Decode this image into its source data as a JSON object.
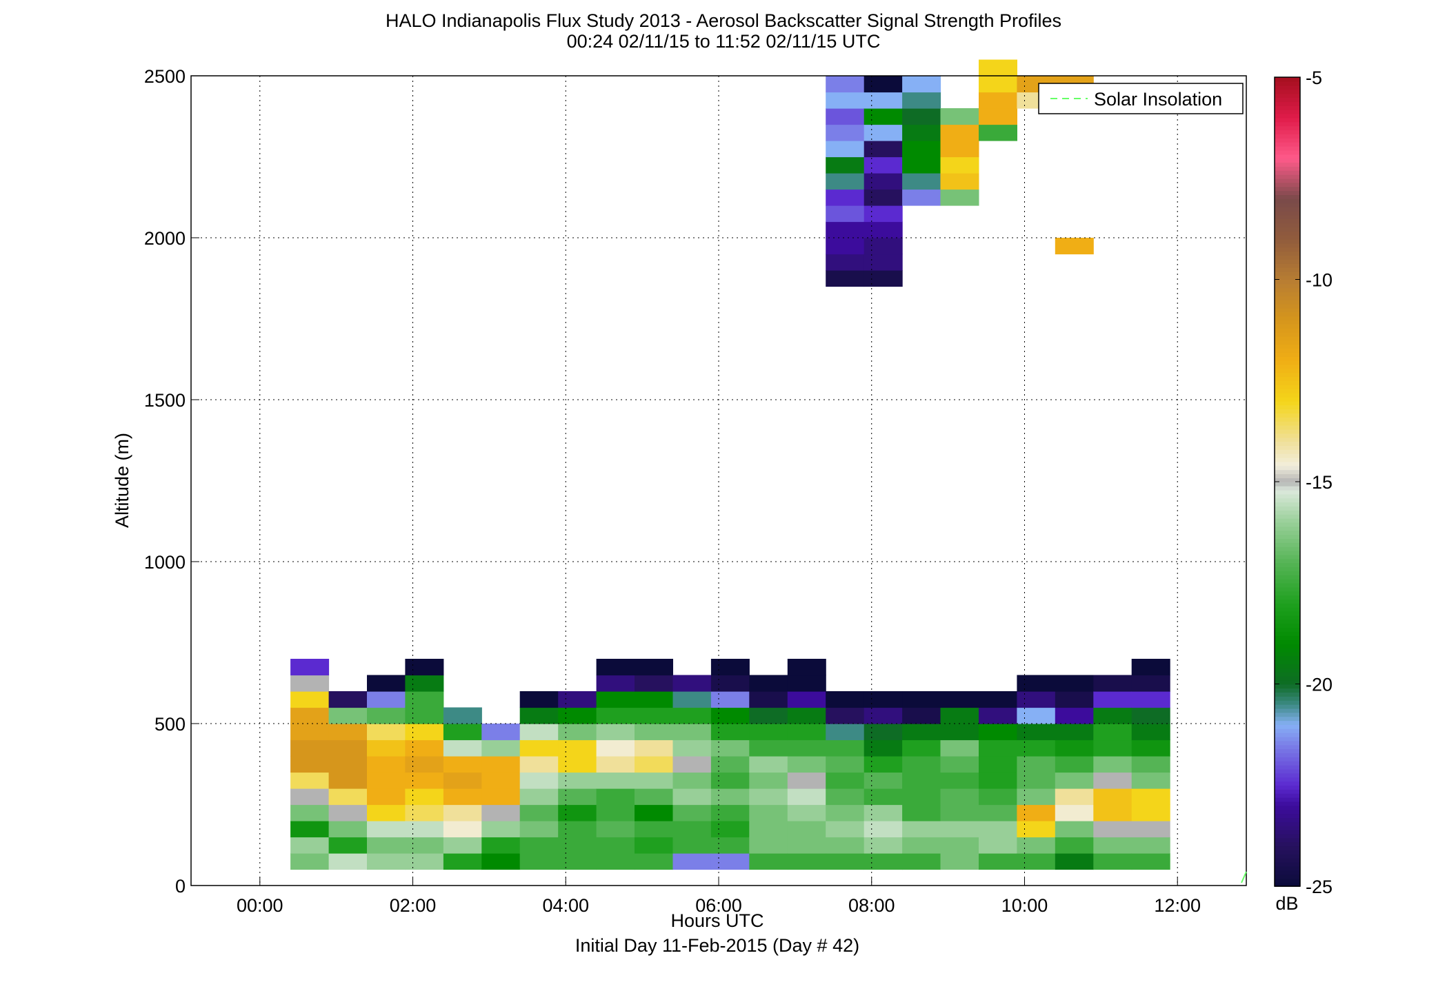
{
  "chart_data": {
    "type": "heatmap",
    "title": "HALO Indianapolis Flux Study 2013 - Aerosol Backscatter Signal Strength Profiles",
    "subtitle": "00:24 02/11/15 to 11:52 02/11/15  UTC",
    "xlabel": "Hours UTC",
    "xlabel2": "Initial Day 11-Feb-2015 (Day # 42)",
    "ylabel": "Altitude (m)",
    "x_ticks": [
      "00:00",
      "02:00",
      "04:00",
      "06:00",
      "08:00",
      "10:00",
      "12:00"
    ],
    "x_tick_values": [
      0,
      2,
      4,
      6,
      8,
      10,
      12
    ],
    "xlim": [
      -0.9,
      12.9
    ],
    "y_ticks": [
      "0",
      "500",
      "1000",
      "1500",
      "2000",
      "2500"
    ],
    "y_tick_values": [
      0,
      500,
      1000,
      1500,
      2000,
      2500
    ],
    "ylim": [
      0,
      2500
    ],
    "grid": true,
    "legend": {
      "entries": [
        "Solar Insolation"
      ],
      "placement": "top-right",
      "line_color": "#66ff66"
    },
    "colorbar": {
      "label": "dB",
      "range": [
        -25,
        -5
      ],
      "ticks": [
        "-5",
        "-10",
        "-15",
        "-20",
        "-25"
      ],
      "tick_values": [
        -5,
        -10,
        -15,
        -20,
        -25
      ]
    },
    "cell_width_hours": 0.5,
    "cell_height_m": 50,
    "time_start_hours": 0.4,
    "alt_start_m": 50,
    "columns": [
      {
        "t": 0.4,
        "v": [
          -16.5,
          -16,
          -18.5,
          -16.5,
          -15,
          -13.5,
          -11,
          -11,
          -11.5,
          -11.5,
          -13,
          -15,
          -22.5
        ]
      },
      {
        "t": 0.9,
        "v": [
          -15.5,
          -18,
          -16.5,
          -15,
          -13.5,
          -11,
          -11,
          -11,
          -11.5,
          -16.5,
          -24
        ]
      },
      {
        "t": 1.4,
        "v": [
          -16,
          -16.5,
          -15.5,
          -13,
          -12,
          -12,
          -12,
          -12.5,
          -13.5,
          -17,
          -21.5,
          -25
        ]
      },
      {
        "t": 1.9,
        "v": [
          -16,
          -16.5,
          -15.5,
          -13.5,
          -13,
          -12,
          -11.5,
          -12,
          -13,
          -17.5,
          -17.5,
          -19.5,
          -25
        ]
      },
      {
        "t": 2.4,
        "v": [
          -18,
          -16,
          -14.5,
          -14,
          -12,
          -11.5,
          -12,
          -15.5,
          -18,
          -20.5
        ]
      },
      {
        "t": 2.9,
        "v": [
          -19,
          -18,
          -16,
          -15,
          -12,
          -12,
          -12,
          -16,
          -21.5
        ]
      },
      {
        "t": 3.4,
        "v": [
          -17.5,
          -17.5,
          -16.5,
          -17,
          -16,
          -15.5,
          -14,
          -13,
          -15.5,
          -19.5,
          -25
        ]
      },
      {
        "t": 3.9,
        "v": [
          -17.5,
          -17.5,
          -17.5,
          -18.5,
          -17,
          -16,
          -13,
          -13,
          -16.5,
          -19,
          -23.5
        ]
      },
      {
        "t": 4.4,
        "v": [
          -17.5,
          -17.5,
          -17,
          -17.5,
          -17.5,
          -16,
          -14,
          -14.5,
          -16,
          -18,
          -19,
          -23.5,
          -25
        ]
      },
      {
        "t": 4.9,
        "v": [
          -17.5,
          -18,
          -17.5,
          -19,
          -17,
          -16,
          -13.5,
          -14,
          -16.5,
          -18,
          -19,
          -24,
          -25
        ]
      },
      {
        "t": 5.4,
        "v": [
          -21.5,
          -17.5,
          -17.5,
          -17,
          -16,
          -16.5,
          -15,
          -16,
          -16.5,
          -18,
          -20.5,
          -23.5
        ]
      },
      {
        "t": 5.9,
        "v": [
          -21.5,
          -17.5,
          -18,
          -17.5,
          -16.5,
          -17.5,
          -17,
          -16.5,
          -18,
          -19,
          -21.5,
          -24.5,
          -25
        ]
      },
      {
        "t": 6.4,
        "v": [
          -17.5,
          -16.5,
          -16.5,
          -16.5,
          -16,
          -16.5,
          -16,
          -17.5,
          -18,
          -20,
          -24.5,
          -25
        ]
      },
      {
        "t": 6.9,
        "v": [
          -17.5,
          -16.5,
          -16.5,
          -16,
          -15.5,
          -15,
          -16.5,
          -17.5,
          -18,
          -19.5,
          -23,
          -25,
          -25
        ]
      },
      {
        "t": 7.4,
        "v": [
          -17.5,
          -16.5,
          -16,
          -16.5,
          -17,
          -17.5,
          -17,
          -17.5,
          -20.5,
          -24,
          -25
        ],
        "upper": [
          {
            "alt": 1850,
            "v": -24.5
          },
          {
            "alt": 1900,
            "v": -23.5
          },
          {
            "alt": 1950,
            "v": -23
          },
          {
            "alt": 2000,
            "v": -23
          },
          {
            "alt": 2050,
            "v": -22
          },
          {
            "alt": 2100,
            "v": -22.5
          },
          {
            "alt": 2150,
            "v": -20.5
          },
          {
            "alt": 2200,
            "v": -19.5
          },
          {
            "alt": 2250,
            "v": -21
          },
          {
            "alt": 2300,
            "v": -21.5
          },
          {
            "alt": 2350,
            "v": -22
          },
          {
            "alt": 2400,
            "v": -21
          },
          {
            "alt": 2450,
            "v": -21.5
          }
        ]
      },
      {
        "t": 7.9,
        "v": [
          -17.5,
          -16,
          -15.5,
          -16,
          -17.5,
          -17,
          -18,
          -19.5,
          -20,
          -23.5,
          -25
        ],
        "upper": [
          {
            "alt": 1850,
            "v": -24.5
          },
          {
            "alt": 1900,
            "v": -23.5
          },
          {
            "alt": 1950,
            "v": -23.5
          },
          {
            "alt": 2000,
            "v": -23
          },
          {
            "alt": 2050,
            "v": -22.5
          },
          {
            "alt": 2100,
            "v": -24
          },
          {
            "alt": 2150,
            "v": -23.5
          },
          {
            "alt": 2200,
            "v": -22.5
          },
          {
            "alt": 2250,
            "v": -24
          },
          {
            "alt": 2300,
            "v": -21
          },
          {
            "alt": 2350,
            "v": -19
          },
          {
            "alt": 2400,
            "v": -21
          },
          {
            "alt": 2450,
            "v": -25
          }
        ]
      },
      {
        "t": 8.4,
        "v": [
          -17.5,
          -16.5,
          -16,
          -17.5,
          -17.5,
          -17.5,
          -17.5,
          -18,
          -19.5,
          -24.5,
          -25
        ],
        "upper": [
          {
            "alt": 2100,
            "v": -21.5
          },
          {
            "alt": 2150,
            "v": -20.5
          },
          {
            "alt": 2200,
            "v": -19
          },
          {
            "alt": 2250,
            "v": -19
          },
          {
            "alt": 2300,
            "v": -19.5
          },
          {
            "alt": 2350,
            "v": -20
          },
          {
            "alt": 2400,
            "v": -20.5
          },
          {
            "alt": 2450,
            "v": -21
          }
        ]
      },
      {
        "t": 8.9,
        "v": [
          -16.5,
          -16.5,
          -16,
          -17,
          -17,
          -17.5,
          -17,
          -16.5,
          -19.5,
          -19.5,
          -25
        ],
        "upper": [
          {
            "alt": 2100,
            "v": -16.5
          },
          {
            "alt": 2150,
            "v": -12.5
          },
          {
            "alt": 2200,
            "v": -13
          },
          {
            "alt": 2250,
            "v": -12
          },
          {
            "alt": 2300,
            "v": -12
          },
          {
            "alt": 2350,
            "v": -16.5
          }
        ]
      },
      {
        "t": 9.4,
        "v": [
          -17.5,
          -16,
          -16,
          -17,
          -17.5,
          -18,
          -18,
          -18,
          -19,
          -23.5,
          -25
        ],
        "upper": [
          {
            "alt": 2300,
            "v": -17.5
          },
          {
            "alt": 2350,
            "v": -12
          },
          {
            "alt": 2400,
            "v": -12
          },
          {
            "alt": 2450,
            "v": -13
          },
          {
            "alt": 2500,
            "v": -13
          }
        ]
      },
      {
        "t": 9.9,
        "v": [
          -17.5,
          -16.5,
          -13,
          -12,
          -16.5,
          -17,
          -17,
          -18,
          -19.5,
          -21,
          -23.5,
          -25
        ],
        "upper": [
          {
            "alt": 2400,
            "v": -14
          },
          {
            "alt": 2450,
            "v": -11.5
          }
        ]
      },
      {
        "t": 10.4,
        "v": [
          -19.5,
          -17.5,
          -16.5,
          -14.5,
          -14,
          -16.5,
          -17.5,
          -18.5,
          -19.5,
          -23,
          -24.5,
          -25
        ],
        "upper": [
          {
            "alt": 1950,
            "v": -12
          },
          {
            "alt": 2450,
            "v": -11.5
          }
        ]
      },
      {
        "t": 10.9,
        "v": [
          -17.5,
          -16.5,
          -15,
          -12.5,
          -12.5,
          -15,
          -16.5,
          -18,
          -18,
          -19.5,
          -22.5,
          -24.5
        ]
      },
      {
        "t": 11.4,
        "v": [
          -17.5,
          -16.5,
          -15,
          -13,
          -13,
          -16.5,
          -17,
          -18.5,
          -19.5,
          -20,
          -22.5,
          -24.5,
          -25
        ]
      }
    ]
  }
}
